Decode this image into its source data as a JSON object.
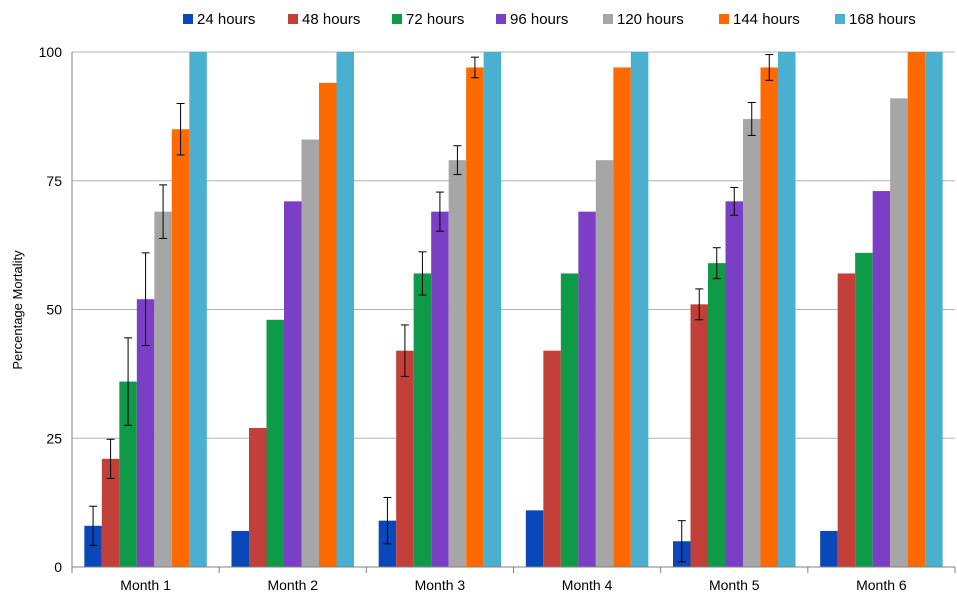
{
  "chart_data": {
    "type": "bar",
    "title": "",
    "xlabel": "",
    "ylabel": "Percentage Mortality",
    "ylim": [
      0,
      100
    ],
    "yticks": [
      0,
      25,
      50,
      75,
      100
    ],
    "grid": true,
    "legend_position": "top",
    "categories": [
      "Month 1",
      "Month 2",
      "Month 3",
      "Month 4",
      "Month 5",
      "Month 6"
    ],
    "series": [
      {
        "name": "24 hours",
        "color": "#0a47b8",
        "values": [
          8,
          7,
          9,
          11,
          5,
          7
        ],
        "errors": [
          3.8,
          null,
          4.5,
          null,
          4,
          null
        ]
      },
      {
        "name": "48 hours",
        "color": "#c3403a",
        "values": [
          21,
          27,
          42,
          42,
          51,
          57
        ],
        "errors": [
          3.8,
          null,
          5,
          null,
          3,
          null
        ]
      },
      {
        "name": "72 hours",
        "color": "#0f9a47",
        "values": [
          36,
          48,
          57,
          57,
          59,
          61
        ],
        "errors": [
          8.5,
          null,
          4.2,
          null,
          3,
          null
        ]
      },
      {
        "name": "96 hours",
        "color": "#7b3fc6",
        "values": [
          52,
          71,
          69,
          69,
          71,
          73
        ],
        "errors": [
          9,
          null,
          3.8,
          null,
          2.7,
          null
        ]
      },
      {
        "name": "120 hours",
        "color": "#a6a6a6",
        "values": [
          69,
          83,
          79,
          79,
          87,
          91
        ],
        "errors": [
          5.2,
          null,
          2.8,
          null,
          3.2,
          null
        ]
      },
      {
        "name": "144 hours",
        "color": "#ff6a00",
        "values": [
          85,
          94,
          97,
          97,
          97,
          100
        ],
        "errors": [
          5,
          null,
          2,
          null,
          2.5,
          null
        ]
      },
      {
        "name": "168 hours",
        "color": "#4bb0cf",
        "values": [
          100,
          100,
          100,
          100,
          100,
          100
        ],
        "errors": [
          null,
          null,
          null,
          null,
          null,
          null
        ]
      }
    ]
  }
}
